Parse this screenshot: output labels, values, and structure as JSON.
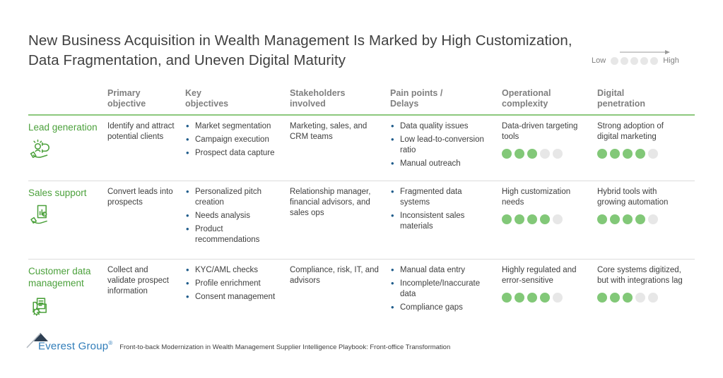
{
  "title": "New Business Acquisition in Wealth Management Is Marked by High Customization,\nData Fragmentation, and Uneven Digital Maturity",
  "legend": {
    "low_label": "Low",
    "high_label": "High",
    "dots": {
      "rating": 0,
      "total": 5
    }
  },
  "colors": {
    "accent_green": "#4ca13c",
    "header_underline_green": "#8dc87e",
    "dot_green": "#82c878",
    "dot_gray": "#e7e7e7",
    "bullet_blue": "#1f5c8b",
    "header_gray": "#7f7f7f",
    "body_text": "#3f3f3f",
    "logo_blue": "#2f7cb9"
  },
  "table": {
    "columns": [
      "Primary\nobjective",
      "Key\nobjectives",
      "Stakeholders\ninvolved",
      "Pain points /\nDelays",
      "Operational\ncomplexity",
      "Digital\npenetration"
    ],
    "rows": [
      {
        "label": "Lead generation",
        "icon": "lead-generation-icon",
        "primary_objective": "Identify and attract potential clients",
        "key_objectives": [
          "Market segmentation",
          "Campaign execution",
          "Prospect data capture"
        ],
        "stakeholders": "Marketing, sales, and CRM teams",
        "pain_points": [
          "Data quality issues",
          "Low lead-to-conversion ratio",
          "Manual outreach"
        ],
        "operational_complexity": {
          "text": "Data-driven targeting tools",
          "rating": 3,
          "total": 5
        },
        "digital_penetration": {
          "text": "Strong adoption of digital marketing",
          "rating": 4,
          "total": 5
        }
      },
      {
        "label": "Sales support",
        "icon": "sales-support-icon",
        "primary_objective": "Convert leads into prospects",
        "key_objectives": [
          "Personalized pitch creation",
          "Needs analysis",
          "Product recommendations"
        ],
        "stakeholders": "Relationship manager, financial advisors, and sales ops",
        "pain_points": [
          "Fragmented data systems",
          "Inconsistent sales materials"
        ],
        "operational_complexity": {
          "text": "High customization needs",
          "rating": 4,
          "total": 5
        },
        "digital_penetration": {
          "text": "Hybrid tools with growing automation",
          "rating": 4,
          "total": 5
        }
      },
      {
        "label": "Customer data management",
        "icon": "customer-data-management-icon",
        "primary_objective": "Collect and validate prospect information",
        "key_objectives": [
          "KYC/AML checks",
          "Profile enrichment",
          "Consent management"
        ],
        "stakeholders": "Compliance, risk, IT, and advisors",
        "pain_points": [
          "Manual data entry",
          "Incomplete/Inaccurate data",
          "Compliance gaps"
        ],
        "operational_complexity": {
          "text": "Highly regulated and error-sensitive",
          "rating": 4,
          "total": 5
        },
        "digital_penetration": {
          "text": "Core systems digitized, but with integrations lag",
          "rating": 3,
          "total": 5
        }
      }
    ]
  },
  "footer": {
    "logo_text": "Everest Group",
    "registered": "®",
    "source": "Front-to-back Modernization in Wealth Management Supplier Intelligence Playbook: Front-office Transformation"
  }
}
